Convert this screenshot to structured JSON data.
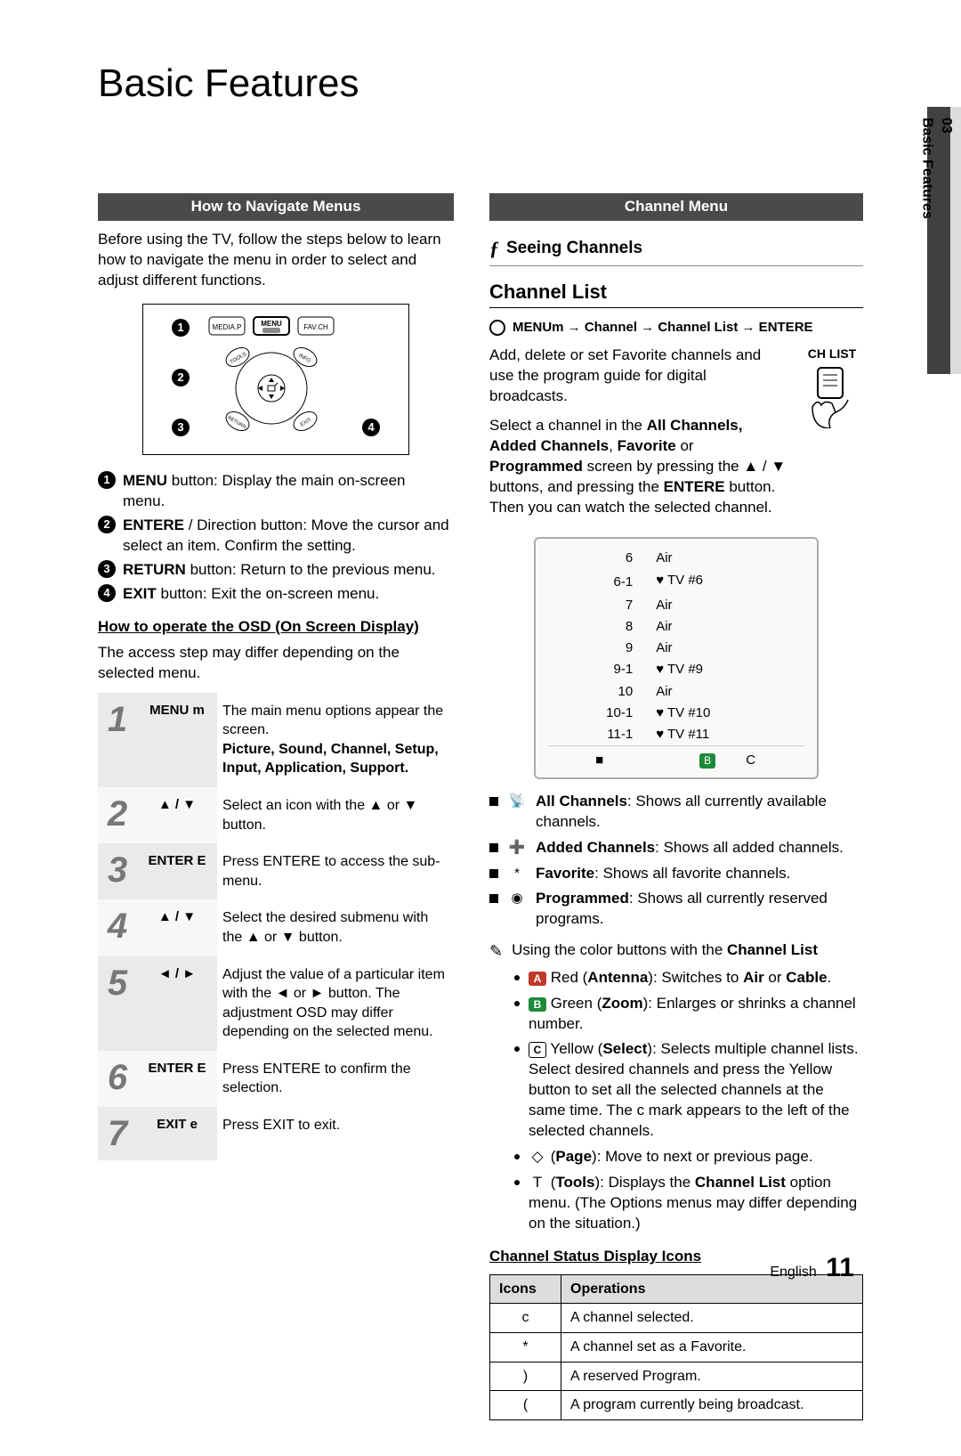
{
  "page": {
    "title": "Basic Features",
    "sideTab": {
      "chapter": "03",
      "label": "Basic Features"
    },
    "footer": {
      "lang": "English",
      "page": "11"
    }
  },
  "left": {
    "sectionBar": "How to Navigate Menus",
    "intro": "Before using the TV, follow the steps below to learn how to navigate the menu in order to select and adjust different functions.",
    "remoteButtons": {
      "mediap": "MEDIA.P",
      "menu": "MENU",
      "favch": "FAV.CH",
      "tools": "TOOLS",
      "info": "INFO",
      "return": "RETURN",
      "exit": "EXIT"
    },
    "numbered": [
      {
        "n": "1",
        "label": "MENU",
        "desc": " button: Display the main on-screen menu."
      },
      {
        "n": "2",
        "label": "ENTERE",
        "desc": " / Direction button: Move the cursor and select an item. Confirm the setting."
      },
      {
        "n": "3",
        "label": "RETURN",
        "desc": " button: Return to the previous menu."
      },
      {
        "n": "4",
        "label": "EXIT",
        "desc": " button: Exit the on-screen menu."
      }
    ],
    "osd": {
      "heading": "How to operate the OSD (On Screen Display)",
      "note": "The access step may differ depending on the selected menu.",
      "rows": [
        {
          "num": "1",
          "key": "MENU m",
          "desc_a": "The main menu options appear the screen.",
          "desc_b": "Picture, Sound, Channel, Setup, Input, Application, Support."
        },
        {
          "num": "2",
          "key": "▲ / ▼",
          "desc_a": "Select an icon with the ▲ or ▼ button.",
          "desc_b": ""
        },
        {
          "num": "3",
          "key": "ENTER E",
          "desc_a": "Press ENTERE   to access the sub-menu.",
          "desc_b": ""
        },
        {
          "num": "4",
          "key": "▲ / ▼",
          "desc_a": "Select the desired submenu with the ▲ or ▼ button.",
          "desc_b": ""
        },
        {
          "num": "5",
          "key": "◄ / ►",
          "desc_a": "Adjust the value of a particular item with the ◄ or ► button. The adjustment OSD may differ depending on the selected menu.",
          "desc_b": ""
        },
        {
          "num": "6",
          "key": "ENTER E",
          "desc_a": "Press ENTERE   to confirm the selection.",
          "desc_b": ""
        },
        {
          "num": "7",
          "key": "EXIT e",
          "desc_a": "Press EXIT to exit.",
          "desc_b": ""
        }
      ]
    }
  },
  "right": {
    "sectionBar": "Channel Menu",
    "seeing": {
      "icon": "ƒ",
      "label": "Seeing Channels"
    },
    "channelList": {
      "heading": "Channel List",
      "menupath": "MENUm  → Channel → Channel List → ENTERE",
      "chlistLabel": "CH LIST",
      "desc1": "Add, delete or set Favorite channels and use the program guide for digital broadcasts.",
      "desc2a": "Select a channel in the ",
      "desc2b": "All Channels, Added Channels",
      "desc2c": ", ",
      "desc2d": "Favorite",
      "desc2e": " or ",
      "desc2f": "Programmed",
      "desc2g": " screen by pressing the ▲ / ▼ buttons, and pressing the ",
      "desc2h": "ENTERE",
      "desc2i": " button. Then you can watch the selected channel.",
      "rows": [
        {
          "ch": "6",
          "name": "Air"
        },
        {
          "ch": "6-1",
          "name": "♥ TV #6"
        },
        {
          "ch": "7",
          "name": "Air"
        },
        {
          "ch": "8",
          "name": "Air"
        },
        {
          "ch": "9",
          "name": "Air"
        },
        {
          "ch": "9-1",
          "name": "♥ TV #9"
        },
        {
          "ch": "10",
          "name": "Air"
        },
        {
          "ch": "10-1",
          "name": "♥ TV #10"
        },
        {
          "ch": "11-1",
          "name": "♥ TV #11"
        }
      ],
      "bottomRow": {
        "a": "■",
        "b": "B",
        "c": "C"
      }
    },
    "views": [
      {
        "icon": "📡",
        "label": "All Channels",
        "desc": ": Shows all currently available channels."
      },
      {
        "icon": "➕",
        "label": "Added Channels",
        "desc": ": Shows all added channels."
      },
      {
        "icon": "*",
        "label": "Favorite",
        "desc": ": Shows all favorite channels."
      },
      {
        "icon": "◉",
        "label": "Programmed",
        "desc": ": Shows all currently reserved programs."
      }
    ],
    "colorNote": "Using the color buttons with the ",
    "colorNoteB": "Channel List",
    "colorButtons": [
      {
        "chip": "A",
        "chipColor": "#c0392b",
        "label": "Red (",
        "bold": "Antenna",
        "after": "): Switches to ",
        "bold2": "Air",
        "mid": " or ",
        "bold3": "Cable",
        "end": "."
      },
      {
        "chip": "B",
        "chipColor": "#1e8a3b",
        "label": "Green (",
        "bold": "Zoom",
        "after": "): Enlarges or shrinks a channel number.",
        "bold2": "",
        "mid": "",
        "bold3": "",
        "end": ""
      },
      {
        "chip": "C",
        "chipColor": "#ffffff",
        "chipOutline": true,
        "label": "Yellow (",
        "bold": "Select",
        "after": "): Selects multiple channel lists. Select desired channels and press the Yellow button to set all the selected channels at the same time. The c   mark appears to the left of the selected channels.",
        "bold2": "",
        "mid": "",
        "bold3": "",
        "end": ""
      },
      {
        "chip": "◇",
        "chipColor": "transparent",
        "plain": true,
        "label": "(",
        "bold": "Page",
        "after": "): Move to next or previous page.",
        "bold2": "",
        "mid": "",
        "bold3": "",
        "end": ""
      },
      {
        "chip": "T",
        "chipColor": "transparent",
        "plain": true,
        "label": "(",
        "bold": "Tools",
        "after": "): Displays the ",
        "bold2": "Channel List",
        "mid": " option menu. (The Options menus may differ depending on the situation.)",
        "bold3": "",
        "end": ""
      }
    ],
    "statusHeading": "Channel Status Display Icons",
    "iconsTable": {
      "headers": {
        "a": "Icons",
        "b": "Operations"
      },
      "rows": [
        {
          "icon": "c",
          "op": "A channel selected."
        },
        {
          "icon": "*",
          "op": "A channel set as a Favorite."
        },
        {
          "icon": ")",
          "op": "A reserved Program."
        },
        {
          "icon": "(",
          "op": "A program currently being broadcast."
        }
      ]
    }
  },
  "colors": {
    "barBg": "#4a4a4a",
    "osdOdd": "#eaeaea",
    "osdEven": "#f7f7f7",
    "sideTabBg": "#dcdcdc",
    "sideBlack": "#404040"
  }
}
